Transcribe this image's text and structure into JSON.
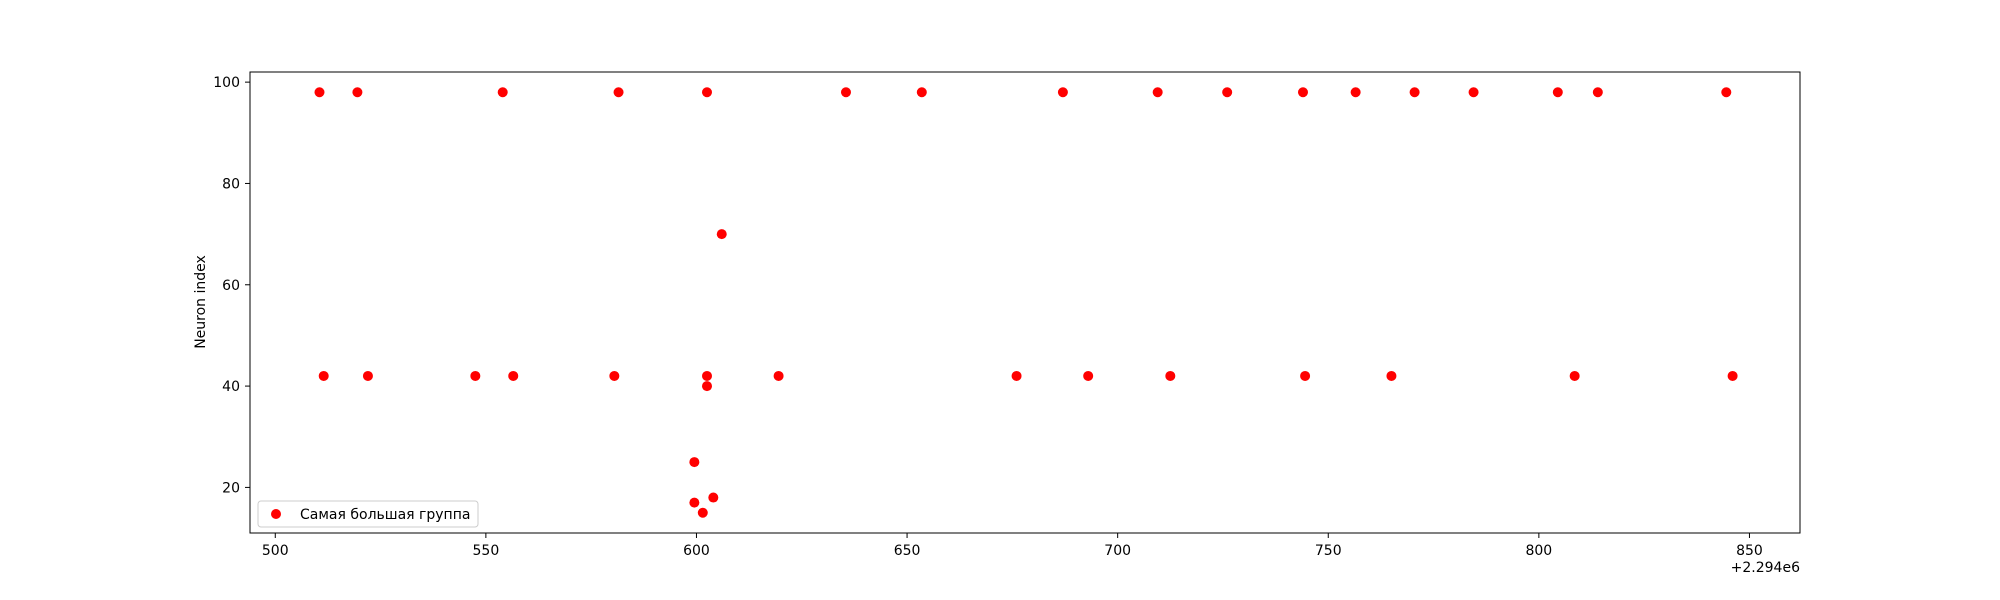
{
  "chart_data": {
    "type": "scatter",
    "title": "",
    "xlabel": "",
    "ylabel": "Neuron index",
    "x_offset_label": "+2.294e6",
    "xlim": [
      494,
      862
    ],
    "ylim": [
      11,
      102
    ],
    "x_ticks": [
      500,
      550,
      600,
      650,
      700,
      750,
      800,
      850
    ],
    "x_tick_labels": [
      "500",
      "550",
      "600",
      "650",
      "700",
      "750",
      "800",
      "850"
    ],
    "y_ticks": [
      20,
      40,
      60,
      80,
      100
    ],
    "y_tick_labels": [
      "20",
      "40",
      "60",
      "80",
      "100"
    ],
    "grid": false,
    "legend": {
      "position": "lower-left"
    },
    "series": [
      {
        "name": "Самая большая группа",
        "color": "#ff0000",
        "points": [
          [
            510.5,
            98
          ],
          [
            519.5,
            98
          ],
          [
            554,
            98
          ],
          [
            581.5,
            98
          ],
          [
            602.5,
            98
          ],
          [
            635.5,
            98
          ],
          [
            653.5,
            98
          ],
          [
            687,
            98
          ],
          [
            709.5,
            98
          ],
          [
            726,
            98
          ],
          [
            744,
            98
          ],
          [
            756.5,
            98
          ],
          [
            770.5,
            98
          ],
          [
            784.5,
            98
          ],
          [
            804.5,
            98
          ],
          [
            814,
            98
          ],
          [
            844.5,
            98
          ],
          [
            511.5,
            42
          ],
          [
            522,
            42
          ],
          [
            547.5,
            42
          ],
          [
            556.5,
            42
          ],
          [
            580.5,
            42
          ],
          [
            602.5,
            42
          ],
          [
            619.5,
            42
          ],
          [
            676,
            42
          ],
          [
            693,
            42
          ],
          [
            712.5,
            42
          ],
          [
            744.5,
            42
          ],
          [
            765,
            42
          ],
          [
            808.5,
            42
          ],
          [
            846,
            42
          ],
          [
            602.5,
            40
          ],
          [
            606,
            70
          ],
          [
            599.5,
            25
          ],
          [
            599.5,
            17
          ],
          [
            601.5,
            15
          ],
          [
            604,
            18
          ]
        ]
      }
    ]
  }
}
